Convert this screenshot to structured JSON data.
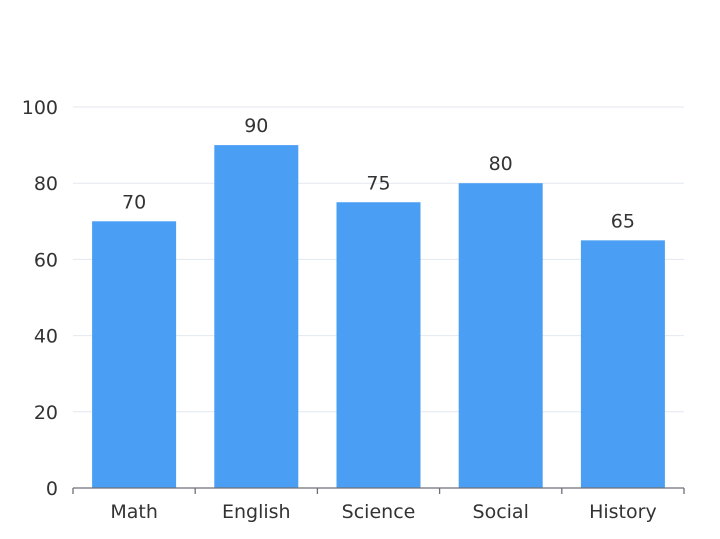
{
  "chart_data": {
    "type": "bar",
    "title": "",
    "xlabel": "",
    "ylabel": "",
    "categories": [
      "Math",
      "English",
      "Science",
      "Social",
      "History"
    ],
    "values": [
      70,
      90,
      75,
      80,
      65
    ],
    "ylim": [
      0,
      100
    ],
    "yticks": [
      0,
      20,
      40,
      60,
      80,
      100
    ],
    "grid": true,
    "data_labels": true,
    "legend": "none",
    "bar_color": "#4a9ff5",
    "grid_color": "#e3e7ef",
    "axis_color": "#6e7079",
    "text_color": "#333333"
  }
}
